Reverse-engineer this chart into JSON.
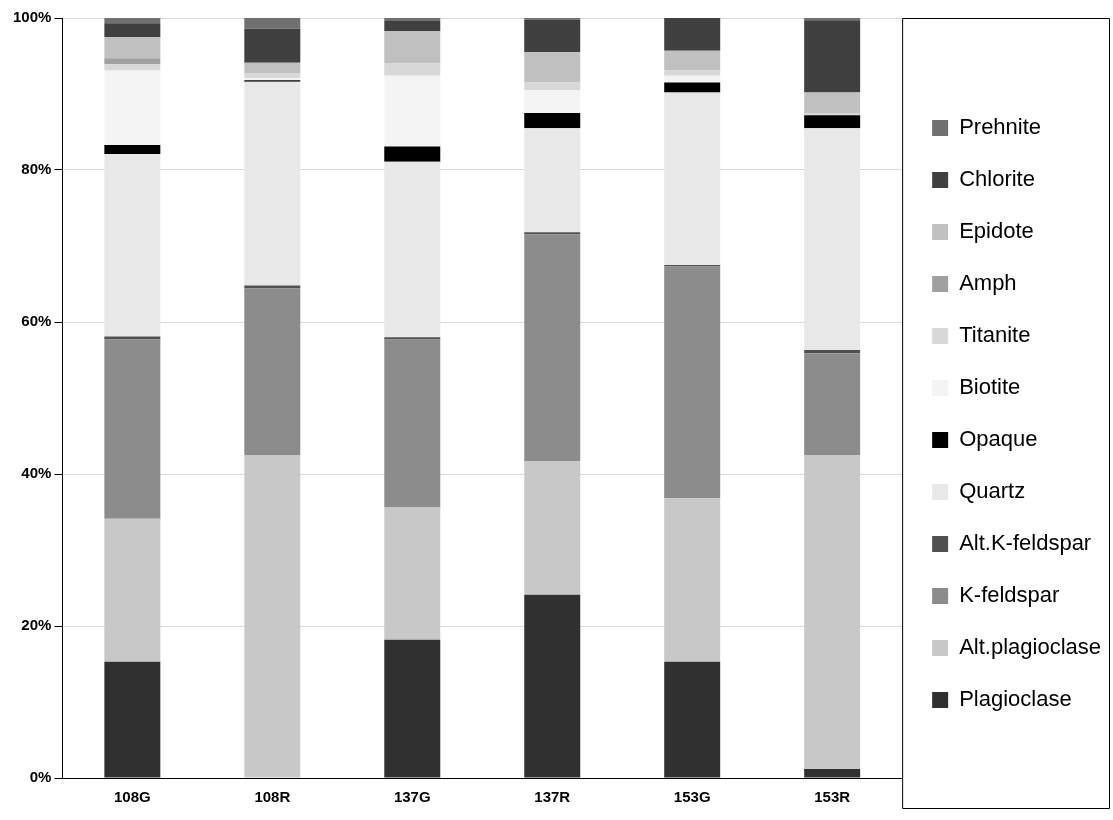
{
  "chart_data": {
    "type": "bar",
    "stacked": true,
    "categories": [
      "108G",
      "108R",
      "137G",
      "137R",
      "153G",
      "153R"
    ],
    "ylim": [
      0,
      100
    ],
    "yticks": [
      {
        "value": 0,
        "label": "0%"
      },
      {
        "value": 20,
        "label": "20%"
      },
      {
        "value": 40,
        "label": "40%"
      },
      {
        "value": 60,
        "label": "60%"
      },
      {
        "value": 80,
        "label": "80%"
      },
      {
        "value": 100,
        "label": "100%"
      }
    ],
    "grid": "y",
    "legend": "right",
    "series": [
      {
        "name": "Plagioclase",
        "color": "#303030",
        "values": [
          15.3,
          0,
          18.2,
          24.1,
          15.3,
          1.2
        ]
      },
      {
        "name": "Alt.plagioclase",
        "color": "#c8c8c8",
        "values": [
          18.8,
          42.5,
          17.4,
          17.6,
          21.5,
          41.3
        ]
      },
      {
        "name": "K-feldspar",
        "color": "#8c8c8c",
        "values": [
          23.6,
          21.9,
          22.1,
          29.8,
          30.5,
          13.4
        ]
      },
      {
        "name": "Alt.K-feldspar",
        "color": "#505050",
        "values": [
          0.4,
          0.4,
          0.3,
          0.3,
          0.2,
          0.4
        ]
      },
      {
        "name": "Quartz",
        "color": "#e8e8e8",
        "values": [
          24.0,
          26.8,
          23.1,
          13.7,
          22.7,
          29.2
        ]
      },
      {
        "name": "Opaque",
        "color": "#000000",
        "values": [
          1.2,
          0.2,
          2.0,
          2.0,
          1.3,
          1.7
        ]
      },
      {
        "name": "Biotite",
        "color": "#f4f4f4",
        "values": [
          9.8,
          0.3,
          9.3,
          3.0,
          0.9,
          0
        ]
      },
      {
        "name": "Titanite",
        "color": "#d8d8d8",
        "values": [
          0.8,
          0.6,
          1.6,
          1.0,
          0.7,
          0.3
        ]
      },
      {
        "name": "Amph",
        "color": "#a0a0a0",
        "values": [
          0.8,
          0,
          0,
          0,
          0,
          0
        ]
      },
      {
        "name": "Epidote",
        "color": "#c0c0c0",
        "values": [
          2.8,
          1.4,
          4.3,
          4.0,
          2.6,
          2.7
        ]
      },
      {
        "name": "Chlorite",
        "color": "#404040",
        "values": [
          1.8,
          4.5,
          1.3,
          4.3,
          4.3,
          9.5
        ]
      },
      {
        "name": "Prehnite",
        "color": "#707070",
        "values": [
          0.7,
          1.4,
          0.4,
          0.2,
          0,
          0.3
        ]
      }
    ]
  }
}
